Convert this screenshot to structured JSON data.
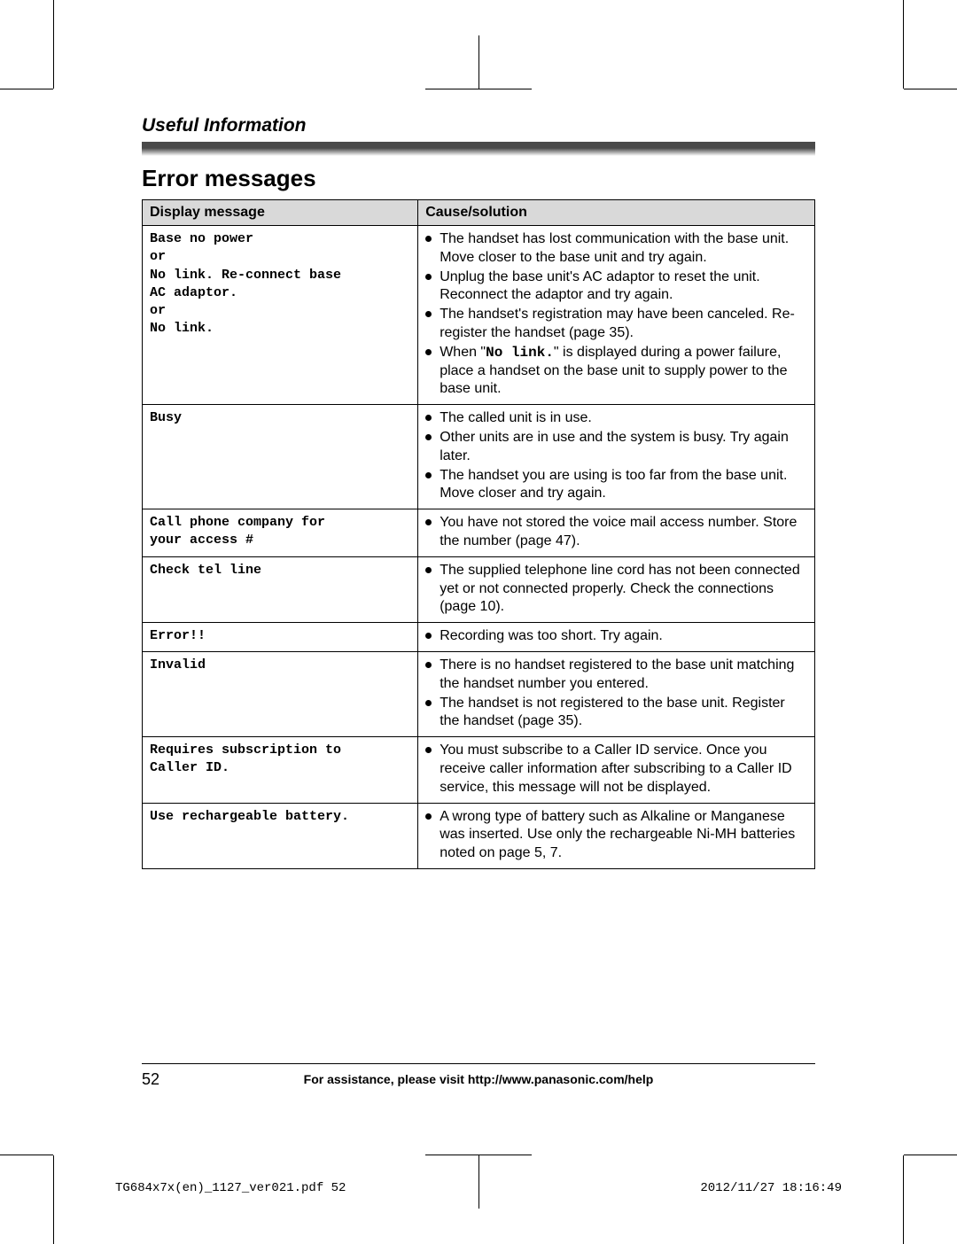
{
  "section_title": "Useful Information",
  "main_heading": "Error messages",
  "table": {
    "headers": {
      "col1": "Display message",
      "col2": "Cause/solution"
    },
    "rows": [
      {
        "msg_lines": [
          "Base no power",
          "or",
          "No link. Re-connect base",
          "AC adaptor.",
          "or",
          "No link."
        ],
        "causes": [
          "The handset has lost communication with the base unit. Move closer to the base unit and try again.",
          "Unplug the base unit's AC adaptor to reset the unit. Reconnect the adaptor and try again.",
          "The handset's registration may have been canceled. Re-register the handset (page 35).",
          {
            "pre": "When \"",
            "mono": "No link.",
            "post": "\" is displayed during a power failure, place a handset on the base unit to supply power to the base unit."
          }
        ]
      },
      {
        "msg_lines": [
          "Busy"
        ],
        "causes": [
          "The called unit is in use.",
          "Other units are in use and the system is busy. Try again later.",
          "The handset you are using is too far from the base unit. Move closer and try again."
        ]
      },
      {
        "msg_lines": [
          "Call phone company for",
          "your access #"
        ],
        "causes": [
          "You have not stored the voice mail access number. Store the number (page 47)."
        ]
      },
      {
        "msg_lines": [
          "Check tel line"
        ],
        "causes": [
          "The supplied telephone line cord has not been connected yet or not connected properly. Check the connections (page 10)."
        ]
      },
      {
        "msg_lines": [
          "Error!!"
        ],
        "causes": [
          "Recording was too short. Try again."
        ]
      },
      {
        "msg_lines": [
          "Invalid"
        ],
        "causes": [
          "There is no handset registered to the base unit matching the handset number you entered.",
          "The handset is not registered to the base unit. Register the handset (page 35)."
        ]
      },
      {
        "msg_lines": [
          "Requires subscription to",
          "Caller ID."
        ],
        "causes": [
          "You must subscribe to a Caller ID service. Once you receive caller information after subscribing to a Caller ID service, this message will not be displayed."
        ]
      },
      {
        "msg_lines": [
          "Use rechargeable battery."
        ],
        "causes": [
          "A wrong type of battery such as Alkaline or Manganese was inserted. Use only the rechargeable Ni-MH batteries noted on page 5, 7."
        ]
      }
    ]
  },
  "page_number": "52",
  "footer_text": "For assistance, please visit http://www.panasonic.com/help",
  "print_meta": {
    "left": "TG684x7x(en)_1127_ver021.pdf   52",
    "right": "2012/11/27   18:16:49"
  }
}
